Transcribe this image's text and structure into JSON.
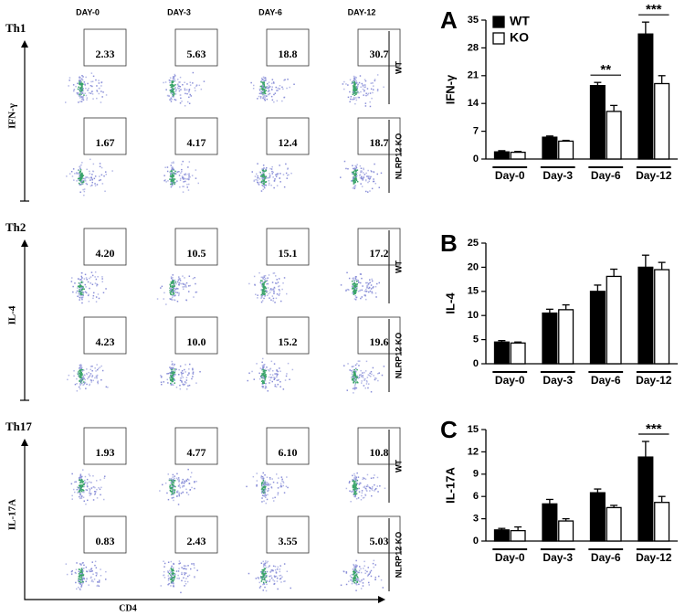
{
  "flow": {
    "columns": [
      "DAY-0",
      "DAY-3",
      "DAY-6",
      "DAY-12"
    ],
    "x_label": "CD4",
    "panels": [
      {
        "label": "Th1",
        "marker": "IFN-γ",
        "rows": [
          {
            "label": "WT",
            "values": [
              "2.33",
              "5.63",
              "18.8",
              "30.7"
            ]
          },
          {
            "label": "NLRP12 KO",
            "values": [
              "1.67",
              "4.17",
              "12.4",
              "18.7"
            ]
          }
        ]
      },
      {
        "label": "Th2",
        "marker": "IL-4",
        "rows": [
          {
            "label": "WT",
            "values": [
              "4.20",
              "10.5",
              "15.1",
              "17.2"
            ]
          },
          {
            "label": "NLRP12 KO",
            "values": [
              "4.23",
              "10.0",
              "15.2",
              "19.6"
            ]
          }
        ]
      },
      {
        "label": "Th17",
        "marker": "IL-17A",
        "rows": [
          {
            "label": "WT",
            "values": [
              "1.93",
              "4.77",
              "6.10",
              "10.8"
            ]
          },
          {
            "label": "NLRP12 KO",
            "values": [
              "0.83",
              "2.43",
              "3.55",
              "5.03"
            ]
          }
        ]
      }
    ]
  },
  "chart_data": [
    {
      "type": "bar",
      "panel": "A",
      "y_label": "IFN-γ",
      "categories": [
        "Day-0",
        "Day-3",
        "Day-6",
        "Day-12"
      ],
      "series": [
        {
          "name": "WT",
          "color": "#000000",
          "values": [
            1.8,
            5.5,
            18.5,
            31.5
          ],
          "errors": [
            0.3,
            0.3,
            0.8,
            3
          ]
        },
        {
          "name": "KO",
          "color": "#ffffff",
          "values": [
            1.7,
            4.5,
            12,
            19
          ],
          "errors": [
            0.2,
            0.2,
            1.5,
            2
          ]
        }
      ],
      "ylim": [
        0,
        35
      ],
      "yticks": [
        0,
        7,
        14,
        21,
        28,
        35
      ],
      "legend": "top-left",
      "annotations": [
        {
          "label": "**",
          "category": "Day-6"
        },
        {
          "label": "***",
          "category": "Day-12"
        }
      ]
    },
    {
      "type": "bar",
      "panel": "B",
      "y_label": "IL-4",
      "categories": [
        "Day-0",
        "Day-3",
        "Day-6",
        "Day-12"
      ],
      "series": [
        {
          "name": "WT",
          "color": "#000000",
          "values": [
            4.5,
            10.5,
            15,
            20
          ],
          "errors": [
            0.3,
            0.8,
            1.3,
            2.5
          ]
        },
        {
          "name": "KO",
          "color": "#ffffff",
          "values": [
            4.3,
            11.2,
            18.1,
            19.5
          ],
          "errors": [
            0.2,
            1,
            1.5,
            1.5
          ]
        }
      ],
      "ylim": [
        0,
        25
      ],
      "yticks": [
        0,
        5,
        10,
        15,
        20,
        25
      ]
    },
    {
      "type": "bar",
      "panel": "C",
      "y_label": "IL-17A",
      "categories": [
        "Day-0",
        "Day-3",
        "Day-6",
        "Day-12"
      ],
      "series": [
        {
          "name": "WT",
          "color": "#000000",
          "values": [
            1.5,
            5,
            6.5,
            11.3
          ],
          "errors": [
            0.2,
            0.6,
            0.5,
            2.1
          ]
        },
        {
          "name": "KO",
          "color": "#ffffff",
          "values": [
            1.4,
            2.7,
            4.5,
            5.2
          ],
          "errors": [
            0.5,
            0.3,
            0.3,
            0.8
          ]
        }
      ],
      "ylim": [
        0,
        15
      ],
      "yticks": [
        0,
        3,
        6,
        9,
        12,
        15
      ],
      "annotations": [
        {
          "label": "***",
          "category": "Day-12"
        }
      ]
    }
  ]
}
